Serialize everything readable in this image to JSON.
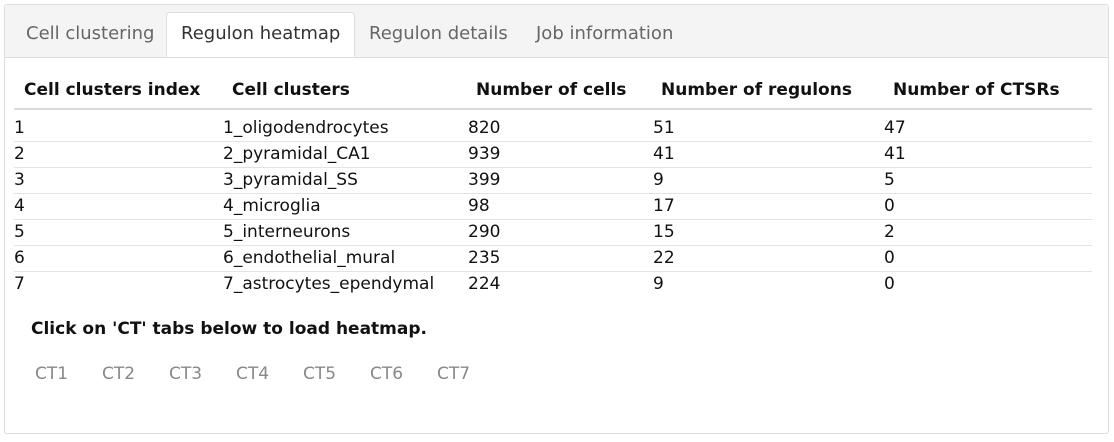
{
  "tabs": [
    {
      "label": "Cell clustering",
      "active": false
    },
    {
      "label": "Regulon heatmap",
      "active": true
    },
    {
      "label": "Regulon details",
      "active": false
    },
    {
      "label": "Job information",
      "active": false
    }
  ],
  "table": {
    "headers": [
      "Cell clusters index",
      "Cell clusters",
      "Number of cells",
      "Number of regulons",
      "Number of CTSRs"
    ],
    "rows": [
      [
        "1",
        "1_oligodendrocytes",
        "820",
        "51",
        "47"
      ],
      [
        "2",
        "2_pyramidal_CA1",
        "939",
        "41",
        "41"
      ],
      [
        "3",
        "3_pyramidal_SS",
        "399",
        "9",
        "5"
      ],
      [
        "4",
        "4_microglia",
        "98",
        "17",
        "0"
      ],
      [
        "5",
        "5_interneurons",
        "290",
        "15",
        "2"
      ],
      [
        "6",
        "6_endothelial_mural",
        "235",
        "22",
        "0"
      ],
      [
        "7",
        "7_astrocytes_ependymal",
        "224",
        "9",
        "0"
      ]
    ]
  },
  "hint": "Click on 'CT' tabs below to load heatmap.",
  "ct_tabs": [
    "CT1",
    "CT2",
    "CT3",
    "CT4",
    "CT5",
    "CT6",
    "CT7"
  ]
}
